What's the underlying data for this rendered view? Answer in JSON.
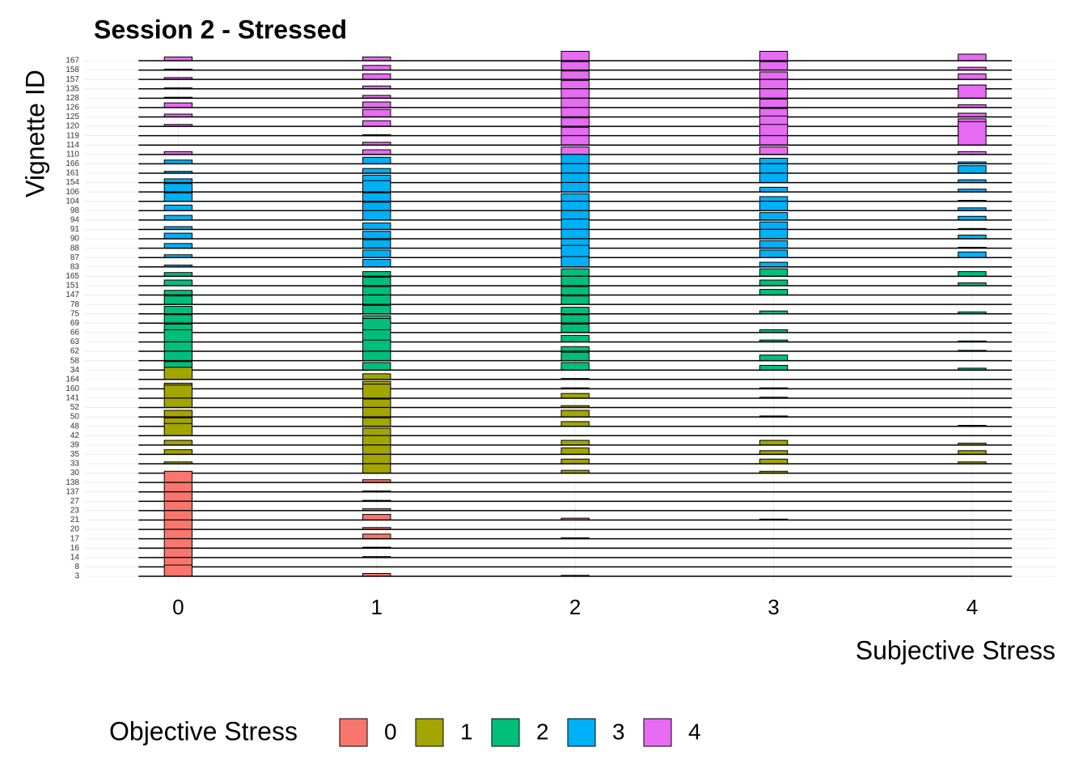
{
  "chart_data": {
    "type": "ridgeline",
    "title": "Session 2 - Stressed",
    "x_label": "Subjective Stress",
    "y_label": "Vignette ID",
    "legend_title": "Objective Stress",
    "x": [
      0,
      1,
      2,
      3,
      4
    ],
    "xlim": [
      -0.47,
      4.42
    ],
    "xticks": [
      0,
      1,
      2,
      3,
      4
    ],
    "grid": true,
    "legend_position": "bottom",
    "series": [
      {
        "name": "0",
        "color": "#F8766D",
        "vignettes": [
          "3",
          "8",
          "14",
          "16",
          "17",
          "20",
          "21",
          "23",
          "27",
          "137",
          "138"
        ],
        "values": [
          [
            1.2,
            0.3,
            0.1,
            0,
            0
          ],
          [
            1.0,
            0,
            0,
            0,
            0
          ],
          [
            1.0,
            0.1,
            0,
            0,
            0
          ],
          [
            1.0,
            0.1,
            0,
            0,
            0
          ],
          [
            1.0,
            0.5,
            0.1,
            0,
            0
          ],
          [
            1.0,
            0.2,
            0,
            0,
            0
          ],
          [
            1.0,
            0.6,
            0.2,
            0.1,
            0
          ],
          [
            1.0,
            0.2,
            0,
            0,
            0
          ],
          [
            1.0,
            0.1,
            0,
            0,
            0
          ],
          [
            1.0,
            0.1,
            0,
            0,
            0
          ],
          [
            1.2,
            0.3,
            0,
            0,
            0
          ]
        ]
      },
      {
        "name": "1",
        "color": "#A3A500",
        "vignettes": [
          "30",
          "33",
          "35",
          "39",
          "42",
          "48",
          "50",
          "52",
          "141",
          "160",
          "164"
        ],
        "values": [
          [
            0.1,
            1.0,
            0.3,
            0.2,
            0
          ],
          [
            0.2,
            1.0,
            0.5,
            0.5,
            0.2
          ],
          [
            0.5,
            1.0,
            0.7,
            0.4,
            0.4
          ],
          [
            0.5,
            1.0,
            0.5,
            0.5,
            0.2
          ],
          [
            1.3,
            0.8,
            0,
            0,
            0
          ],
          [
            0.9,
            0.9,
            0.5,
            0,
            0.1
          ],
          [
            0.7,
            1.0,
            0.7,
            0.1,
            0
          ],
          [
            1.0,
            0.9,
            0.2,
            0,
            0
          ],
          [
            1.4,
            1.5,
            0.5,
            0.1,
            0
          ],
          [
            0.6,
            0.8,
            0.1,
            0.1,
            0
          ],
          [
            1.3,
            0.6,
            0.1,
            0,
            0
          ]
        ]
      },
      {
        "name": "2",
        "color": "#00BF7D",
        "vignettes": [
          "34",
          "58",
          "62",
          "63",
          "66",
          "69",
          "75",
          "78",
          "147",
          "151",
          "165"
        ],
        "values": [
          [
            0.9,
            0.8,
            0.8,
            0.5,
            0.2
          ],
          [
            1.0,
            1.0,
            0.9,
            0.6,
            0
          ],
          [
            1.0,
            1.2,
            0.5,
            0,
            0.1
          ],
          [
            1.3,
            1.3,
            0.7,
            0.2,
            0.1
          ],
          [
            0.9,
            1.5,
            0.9,
            0.3,
            0
          ],
          [
            0.9,
            0.8,
            0.9,
            0,
            0
          ],
          [
            0.8,
            0.9,
            0.7,
            0.3,
            0.2
          ],
          [
            0.9,
            1.0,
            0.9,
            0,
            0
          ],
          [
            0.5,
            0.9,
            0.9,
            0.6,
            0
          ],
          [
            0.6,
            0.9,
            1.0,
            0.6,
            0.3
          ],
          [
            0.4,
            0.5,
            0.8,
            0.8,
            0.5
          ]
        ]
      },
      {
        "name": "3",
        "color": "#00B0F6",
        "vignettes": [
          "83",
          "87",
          "88",
          "90",
          "91",
          "94",
          "98",
          "104",
          "106",
          "154",
          "161",
          "166"
        ],
        "values": [
          [
            0.2,
            0.8,
            1.1,
            0.5,
            0
          ],
          [
            0.3,
            0.8,
            1.3,
            0.8,
            0.6
          ],
          [
            0.5,
            0.9,
            1.0,
            0.8,
            0.1
          ],
          [
            0.6,
            0.8,
            1.0,
            1.0,
            0.4
          ],
          [
            0.3,
            0.7,
            1.1,
            0.8,
            0.1
          ],
          [
            0.5,
            1.0,
            1.0,
            0.8,
            0.4
          ],
          [
            0.6,
            0.9,
            1.0,
            1.0,
            0.3
          ],
          [
            0.9,
            0.9,
            0.8,
            0.5,
            0.1
          ],
          [
            0.9,
            1.2,
            1.0,
            0.5,
            0.3
          ],
          [
            0.4,
            0.8,
            1.0,
            1.0,
            0.3
          ],
          [
            0.2,
            0.5,
            1.0,
            1.0,
            0.8
          ],
          [
            0.4,
            0.7,
            1.0,
            0.6,
            0.2
          ]
        ]
      },
      {
        "name": "4",
        "color": "#E76BF3",
        "vignettes": [
          "110",
          "114",
          "119",
          "120",
          "125",
          "126",
          "128",
          "135",
          "157",
          "158",
          "167"
        ],
        "values": [
          [
            0.3,
            0.5,
            0.8,
            0.8,
            0.3
          ],
          [
            0,
            0.3,
            1.0,
            1.0,
            2.5
          ],
          [
            0,
            0.1,
            0.9,
            1.2,
            1.0
          ],
          [
            0.2,
            0.6,
            0.9,
            1.1,
            0.8
          ],
          [
            0.3,
            0.8,
            1.0,
            0.9,
            0.4
          ],
          [
            0.5,
            0.6,
            1.0,
            0.9,
            0.3
          ],
          [
            0.1,
            0.3,
            1.0,
            1.0,
            1.4
          ],
          [
            0.1,
            0.3,
            0.9,
            1.0,
            0.4
          ],
          [
            0.2,
            0.6,
            0.9,
            0.8,
            0.6
          ],
          [
            0.1,
            0.5,
            0.9,
            0.9,
            0.3
          ],
          [
            0.4,
            0.4,
            1.0,
            1.0,
            0.7
          ]
        ]
      }
    ]
  }
}
